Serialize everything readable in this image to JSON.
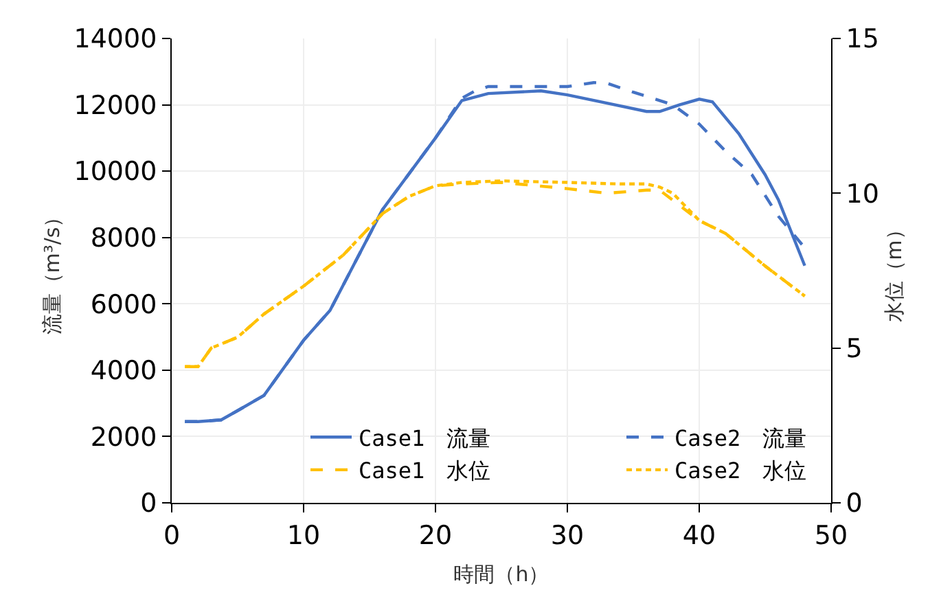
{
  "chart_data": {
    "type": "line",
    "xlabel": "時間（h）",
    "ylabel": "流量（m³/s）",
    "y2label": "水位（m）",
    "xlim": [
      0,
      50
    ],
    "xticks": [
      0,
      10,
      20,
      30,
      40,
      50
    ],
    "ylim": [
      0,
      14000
    ],
    "yticks": [
      0,
      2000,
      4000,
      6000,
      8000,
      10000,
      12000,
      14000
    ],
    "y2lim": [
      0,
      15
    ],
    "y2ticks": [
      0,
      5,
      10,
      15
    ],
    "grid": true,
    "legend": "bottom right",
    "marker": "none",
    "series": [
      {
        "name": "Case1　流量",
        "color": "#4472c4",
        "line_style": "solid",
        "x": [
          1,
          2,
          3.75,
          5,
          7,
          10,
          12,
          16,
          20,
          22,
          24,
          28,
          30,
          33,
          36,
          37,
          38.5,
          40,
          41,
          43,
          45,
          46,
          48
        ],
        "values": [
          2450,
          2450,
          2500,
          2780,
          3240,
          4900,
          5800,
          8850,
          11000,
          12130,
          12340,
          12420,
          12300,
          12050,
          11800,
          11800,
          12000,
          12170,
          12090,
          11130,
          9890,
          9140,
          7150
        ]
      },
      {
        "name": "Case2　流量",
        "color": "#4472c4",
        "line_style": "dashed",
        "x": [
          1,
          2,
          3.75,
          5,
          7,
          10,
          12,
          16,
          20,
          22,
          23,
          24,
          26,
          30,
          32,
          33,
          35,
          37,
          38,
          40,
          42,
          44,
          46,
          48
        ],
        "values": [
          2450,
          2450,
          2500,
          2780,
          3240,
          4900,
          5800,
          8850,
          11000,
          12200,
          12420,
          12550,
          12550,
          12550,
          12670,
          12650,
          12380,
          12130,
          12000,
          11420,
          10600,
          9890,
          8640,
          7690
        ]
      },
      {
        "name": "Case1　水位",
        "color": "#ffc000",
        "line_style": "dashed",
        "axis": "y2",
        "x": [
          1,
          2,
          3,
          5,
          7,
          10,
          13,
          16,
          18,
          20,
          22,
          25,
          30,
          33,
          36,
          37,
          40,
          42,
          45,
          48
        ],
        "values": [
          4.4,
          4.4,
          5.0,
          5.35,
          6.1,
          7.0,
          8.0,
          9.35,
          9.9,
          10.24,
          10.3,
          10.35,
          10.15,
          10.0,
          10.1,
          10.1,
          9.12,
          8.7,
          7.65,
          6.68
        ]
      },
      {
        "name": "Case2　水位",
        "color": "#ffc000",
        "line_style": "dotted",
        "axis": "y2",
        "x": [
          1,
          2,
          3,
          5,
          7,
          10,
          13,
          16,
          18,
          20,
          22,
          25,
          30,
          34,
          36,
          37,
          38,
          40,
          42,
          45,
          48
        ],
        "values": [
          4.4,
          4.4,
          5.0,
          5.35,
          6.1,
          7.0,
          8.0,
          9.35,
          9.9,
          10.24,
          10.35,
          10.4,
          10.35,
          10.3,
          10.3,
          10.2,
          10.0,
          9.12,
          8.7,
          7.65,
          6.68
        ]
      }
    ]
  }
}
